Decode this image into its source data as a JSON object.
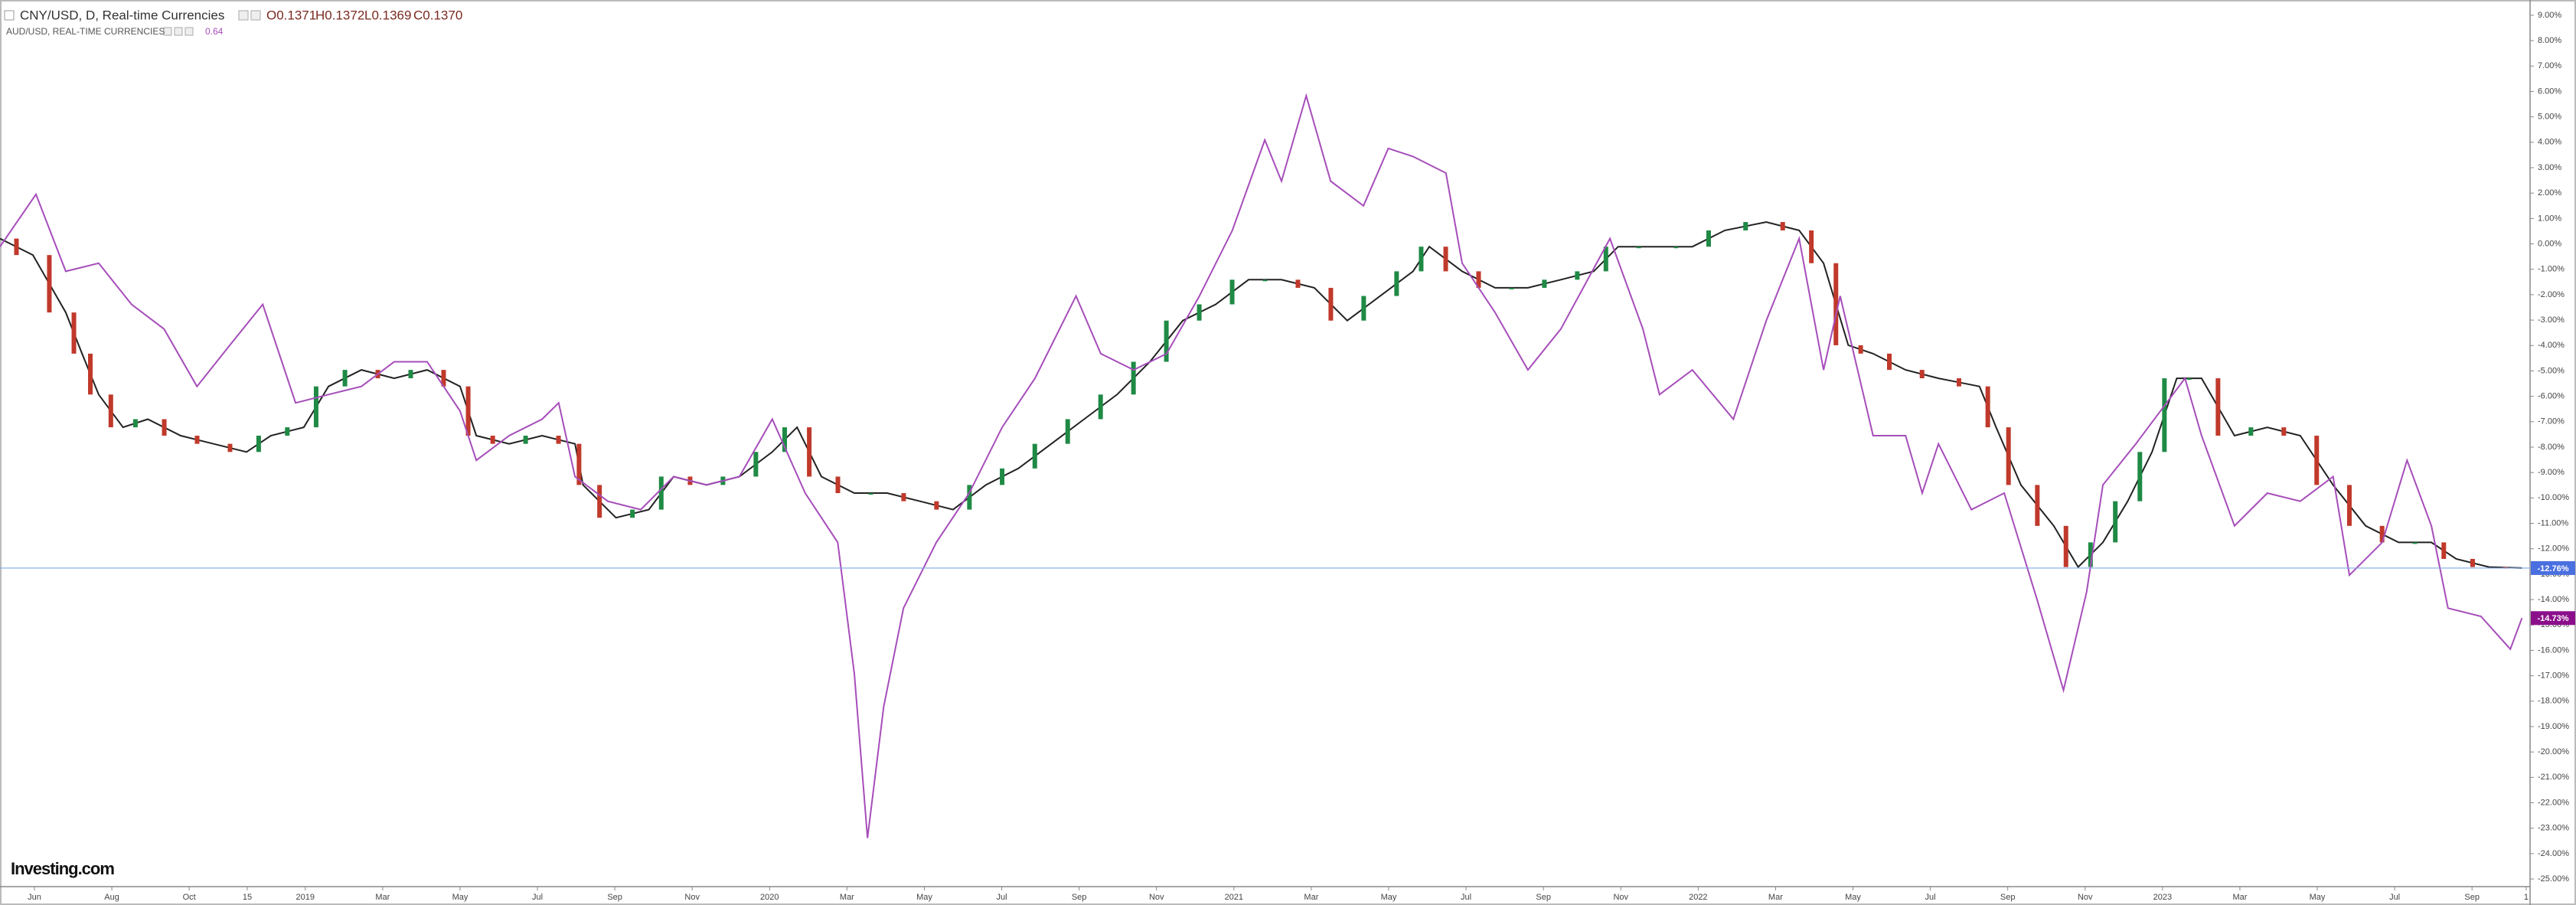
{
  "chart_data": {
    "type": "line",
    "logo": "Investing.com",
    "xlim": [
      -0.89,
      64.5
    ],
    "ylim": [
      -25.3,
      9.6
    ],
    "xticks": [
      {
        "value": 0,
        "label": "Jun"
      },
      {
        "value": 2,
        "label": "Aug"
      },
      {
        "value": 4,
        "label": "Oct"
      },
      {
        "value": 5.5,
        "label": "15"
      },
      {
        "value": 7,
        "label": "2019"
      },
      {
        "value": 9,
        "label": "Mar"
      },
      {
        "value": 11,
        "label": "May"
      },
      {
        "value": 13,
        "label": "Jul"
      },
      {
        "value": 15,
        "label": "Sep"
      },
      {
        "value": 17,
        "label": "Nov"
      },
      {
        "value": 19,
        "label": "2020"
      },
      {
        "value": 21,
        "label": "Mar"
      },
      {
        "value": 23,
        "label": "May"
      },
      {
        "value": 25,
        "label": "Jul"
      },
      {
        "value": 27,
        "label": "Sep"
      },
      {
        "value": 29,
        "label": "Nov"
      },
      {
        "value": 31,
        "label": "2021"
      },
      {
        "value": 33,
        "label": "Mar"
      },
      {
        "value": 35,
        "label": "May"
      },
      {
        "value": 37,
        "label": "Jul"
      },
      {
        "value": 39,
        "label": "Sep"
      },
      {
        "value": 41,
        "label": "Nov"
      },
      {
        "value": 43,
        "label": "2022"
      },
      {
        "value": 45,
        "label": "Mar"
      },
      {
        "value": 47,
        "label": "May"
      },
      {
        "value": 49,
        "label": "Jul"
      },
      {
        "value": 51,
        "label": "Sep"
      },
      {
        "value": 53,
        "label": "Nov"
      },
      {
        "value": 55,
        "label": "2023"
      },
      {
        "value": 57,
        "label": "Mar"
      },
      {
        "value": 59,
        "label": "May"
      },
      {
        "value": 61,
        "label": "Jul"
      },
      {
        "value": 63,
        "label": "Sep"
      },
      {
        "value": 64.4,
        "label": "1"
      }
    ],
    "yticks": [
      {
        "value": 9,
        "label": "9.00%"
      },
      {
        "value": 8,
        "label": "8.00%"
      },
      {
        "value": 7,
        "label": "7.00%"
      },
      {
        "value": 6,
        "label": "6.00%"
      },
      {
        "value": 5,
        "label": "5.00%"
      },
      {
        "value": 4,
        "label": "4.00%"
      },
      {
        "value": 3,
        "label": "3.00%"
      },
      {
        "value": 2,
        "label": "2.00%"
      },
      {
        "value": 1,
        "label": "1.00%"
      },
      {
        "value": 0,
        "label": "0.00%"
      },
      {
        "value": -1,
        "label": "-1.00%"
      },
      {
        "value": -2,
        "label": "-2.00%"
      },
      {
        "value": -3,
        "label": "-3.00%"
      },
      {
        "value": -4,
        "label": "-4.00%"
      },
      {
        "value": -5,
        "label": "-5.00%"
      },
      {
        "value": -6,
        "label": "-6.00%"
      },
      {
        "value": -7,
        "label": "-7.00%"
      },
      {
        "value": -8,
        "label": "-8.00%"
      },
      {
        "value": -9,
        "label": "-9.00%"
      },
      {
        "value": -10,
        "label": "-10.00%"
      },
      {
        "value": -11,
        "label": "-11.00%"
      },
      {
        "value": -12,
        "label": "-12.00%"
      },
      {
        "value": -13,
        "label": "-13.00%"
      },
      {
        "value": -14,
        "label": "-14.00%"
      },
      {
        "value": -15,
        "label": "-15.00%"
      },
      {
        "value": -16,
        "label": "-16.00%"
      },
      {
        "value": -17,
        "label": "-17.00%"
      },
      {
        "value": -18,
        "label": "-18.00%"
      },
      {
        "value": -19,
        "label": "-19.00%"
      },
      {
        "value": -20,
        "label": "-20.00%"
      },
      {
        "value": -21,
        "label": "-21.00%"
      },
      {
        "value": -22,
        "label": "-22.00%"
      },
      {
        "value": -23,
        "label": "-23.00%"
      },
      {
        "value": -24,
        "label": "-24.00%"
      },
      {
        "value": -25,
        "label": "-25.00%"
      }
    ],
    "series": [
      {
        "name": "CNY/USD, D, Real-time Currencies",
        "style": "candles",
        "color": "#222222",
        "up_color": "#1f8a45",
        "down_color": "#c0392b",
        "marker_color": "#4a6fe0",
        "ohlc": [
          "O0.1371",
          "H0.1372",
          "L0.1369",
          "C0.1370"
        ],
        "last_label": "-12.76%",
        "x": [
          -0.89,
          -0.04,
          0.81,
          1.23,
          1.66,
          2.29,
          2.93,
          3.78,
          4.63,
          5.48,
          6.11,
          6.96,
          7.6,
          8.45,
          9.3,
          10.15,
          11.0,
          11.42,
          12.27,
          13.12,
          13.97,
          14.18,
          15.03,
          15.88,
          16.52,
          17.37,
          18.22,
          19.07,
          19.71,
          20.34,
          21.19,
          22.04,
          22.89,
          23.74,
          24.59,
          25.43,
          26.28,
          27.13,
          27.98,
          28.83,
          29.68,
          30.53,
          31.38,
          32.23,
          33.08,
          33.93,
          34.78,
          35.63,
          36.05,
          36.9,
          37.75,
          38.6,
          39.45,
          40.3,
          40.93,
          42.0,
          42.85,
          43.69,
          44.76,
          45.61,
          46.24,
          46.88,
          47.52,
          48.36,
          49.21,
          50.27,
          50.7,
          51.34,
          52.19,
          52.82,
          53.46,
          54.1,
          54.73,
          55.37,
          56.01,
          56.86,
          57.71,
          58.56,
          59.41,
          60.25,
          61.1,
          61.95,
          62.59,
          63.44,
          64.29
        ],
        "values": [
          0.21,
          -0.44,
          -2.7,
          -4.32,
          -5.93,
          -7.22,
          -6.9,
          -7.55,
          -7.87,
          -8.19,
          -7.55,
          -7.22,
          -5.61,
          -4.96,
          -5.29,
          -4.96,
          -5.61,
          -7.55,
          -7.87,
          -7.55,
          -7.87,
          -9.49,
          -10.78,
          -10.46,
          -9.16,
          -9.49,
          -9.16,
          -8.19,
          -7.22,
          -9.16,
          -9.81,
          -9.81,
          -10.13,
          -10.46,
          -9.49,
          -8.84,
          -7.87,
          -6.9,
          -5.93,
          -4.64,
          -3.02,
          -2.38,
          -1.41,
          -1.41,
          -1.73,
          -3.02,
          -2.05,
          -1.08,
          -0.11,
          -1.08,
          -1.73,
          -1.73,
          -1.41,
          -1.08,
          -0.11,
          -0.11,
          -0.11,
          0.53,
          0.86,
          0.53,
          -0.76,
          -3.99,
          -4.32,
          -4.96,
          -5.29,
          -5.61,
          -7.22,
          -9.49,
          -11.1,
          -12.72,
          -11.75,
          -10.13,
          -8.19,
          -5.29,
          -5.29,
          -7.55,
          -7.22,
          -7.55,
          -9.49,
          -11.1,
          -11.75,
          -11.75,
          -12.4,
          -12.72,
          -12.76
        ]
      },
      {
        "name": "AUD/USD, REAL-TIME CURRENCIES",
        "style": "line",
        "color": "#a64dba",
        "marker_color": "#8b0f8b",
        "value_text": "0.64",
        "last_label": "-14.73%",
        "x": [
          -0.89,
          0.04,
          0.81,
          1.66,
          2.51,
          3.35,
          4.2,
          5.05,
          5.9,
          6.75,
          7.6,
          8.45,
          9.3,
          10.15,
          11.0,
          11.42,
          12.27,
          13.12,
          13.55,
          13.97,
          14.82,
          15.67,
          16.52,
          17.37,
          18.22,
          19.07,
          19.92,
          20.76,
          21.19,
          21.53,
          21.95,
          22.46,
          23.31,
          24.16,
          25.01,
          25.86,
          26.92,
          27.56,
          28.41,
          29.26,
          30.11,
          30.96,
          31.8,
          32.23,
          32.87,
          33.5,
          34.35,
          34.99,
          35.63,
          36.48,
          36.9,
          37.75,
          38.6,
          39.45,
          40.72,
          41.57,
          42.0,
          42.85,
          43.91,
          44.76,
          45.61,
          46.24,
          46.67,
          47.52,
          48.36,
          48.79,
          49.21,
          50.06,
          50.91,
          51.76,
          52.44,
          53.04,
          53.46,
          54.31,
          55.58,
          56.01,
          56.86,
          57.71,
          58.56,
          59.41,
          59.83,
          60.68,
          61.32,
          61.95,
          62.38,
          63.23,
          63.99,
          64.29
        ],
        "values": [
          -0.11,
          1.95,
          -1.08,
          -0.76,
          -2.38,
          -3.35,
          -5.61,
          -3.99,
          -2.38,
          -6.26,
          -5.93,
          -5.61,
          -4.64,
          -4.64,
          -6.58,
          -8.52,
          -7.55,
          -6.9,
          -6.26,
          -9.16,
          -10.13,
          -10.46,
          -9.16,
          -9.49,
          -9.16,
          -6.9,
          -9.81,
          -11.75,
          -16.92,
          -23.39,
          -18.21,
          -14.34,
          -11.75,
          -9.81,
          -7.22,
          -5.29,
          -2.05,
          -4.32,
          -4.96,
          -4.32,
          -2.05,
          0.53,
          4.09,
          2.47,
          5.83,
          2.47,
          1.5,
          3.76,
          3.44,
          2.79,
          -0.76,
          -2.7,
          -4.96,
          -3.35,
          0.21,
          -3.35,
          -5.93,
          -4.96,
          -6.9,
          -3.02,
          0.21,
          -4.96,
          -2.05,
          -7.55,
          -7.55,
          -9.81,
          -7.87,
          -10.46,
          -9.81,
          -14.01,
          -17.57,
          -13.69,
          -9.49,
          -7.87,
          -5.29,
          -7.55,
          -11.1,
          -9.81,
          -10.13,
          -9.16,
          -13.04,
          -11.75,
          -8.52,
          -11.1,
          -14.34,
          -14.66,
          -15.95,
          -14.73
        ]
      }
    ]
  }
}
